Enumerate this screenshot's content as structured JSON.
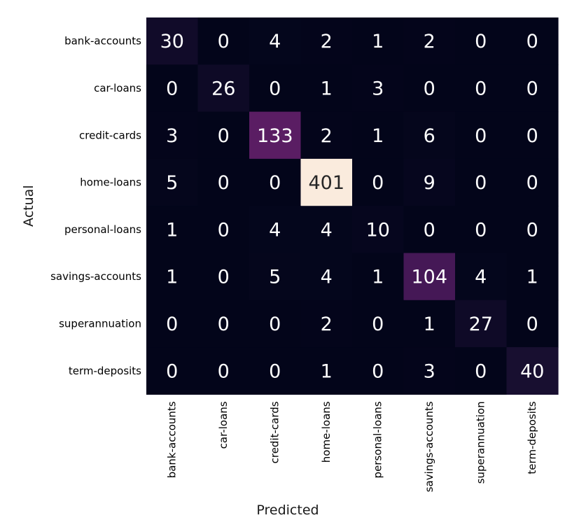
{
  "chart_data": {
    "type": "heatmap",
    "title": "",
    "xlabel": "Predicted",
    "ylabel": "Actual",
    "x_categories": [
      "bank-accounts",
      "car-loans",
      "credit-cards",
      "home-loans",
      "personal-loans",
      "savings-accounts",
      "superannuation",
      "term-deposits"
    ],
    "y_categories": [
      "bank-accounts",
      "car-loans",
      "credit-cards",
      "home-loans",
      "personal-loans",
      "savings-accounts",
      "superannuation",
      "term-deposits"
    ],
    "matrix": [
      [
        30,
        0,
        4,
        2,
        1,
        2,
        0,
        0
      ],
      [
        0,
        26,
        0,
        1,
        3,
        0,
        0,
        0
      ],
      [
        3,
        0,
        133,
        2,
        1,
        6,
        0,
        0
      ],
      [
        5,
        0,
        0,
        401,
        0,
        9,
        0,
        0
      ],
      [
        1,
        0,
        4,
        4,
        10,
        0,
        0,
        0
      ],
      [
        1,
        0,
        5,
        4,
        1,
        104,
        4,
        1
      ],
      [
        0,
        0,
        0,
        2,
        0,
        1,
        27,
        0
      ],
      [
        0,
        0,
        0,
        1,
        0,
        3,
        0,
        40
      ]
    ],
    "value_range": [
      0,
      401
    ],
    "colorbar": false,
    "grid": false
  }
}
